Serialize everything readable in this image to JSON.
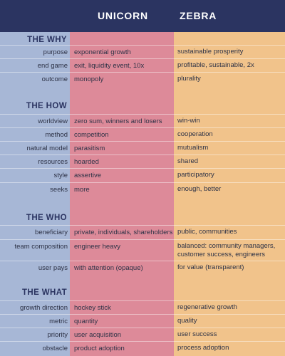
{
  "header": {
    "unicorn": "UNICORN",
    "zebra": "ZEBRA"
  },
  "sections": [
    {
      "title": "THE WHY",
      "rows": [
        {
          "label": "purpose",
          "unicorn": "exponential growth",
          "zebra": "sustainable prosperity"
        },
        {
          "label": "end game",
          "unicorn": "exit, liquidity event, 10x",
          "zebra": "profitable, sustainable, 2x"
        },
        {
          "label": "outcome",
          "unicorn": "monopoly",
          "zebra": "plurality"
        }
      ]
    },
    {
      "title": "THE HOW",
      "rows": [
        {
          "label": "worldview",
          "unicorn": "zero sum, winners and losers",
          "zebra": "win-win"
        },
        {
          "label": "method",
          "unicorn": "competition",
          "zebra": "cooperation"
        },
        {
          "label": "natural model",
          "unicorn": "parasitism",
          "zebra": "mutualism"
        },
        {
          "label": "resources",
          "unicorn": "hoarded",
          "zebra": "shared"
        },
        {
          "label": "style",
          "unicorn": "assertive",
          "zebra": "participatory"
        },
        {
          "label": "seeks",
          "unicorn": "more",
          "zebra": "enough, better"
        }
      ]
    },
    {
      "title": "THE WHO",
      "rows": [
        {
          "label": "beneficiary",
          "unicorn": "private, individuals, shareholders",
          "zebra": "public, communities"
        },
        {
          "label": "team composition",
          "unicorn": "engineer heavy",
          "zebra": "balanced: community managers, customer success, engineers"
        },
        {
          "label": "user pays",
          "unicorn": "with attention (opaque)",
          "zebra": "for value (transparent)"
        }
      ]
    },
    {
      "title": "THE WHAT",
      "rows": [
        {
          "label": "growth direction",
          "unicorn": "hockey stick",
          "zebra": "regenerative growth"
        },
        {
          "label": "metric",
          "unicorn": "quantity",
          "zebra": "quality"
        },
        {
          "label": "priority",
          "unicorn": "user acquisition",
          "zebra": "user success"
        },
        {
          "label": "obstacle",
          "unicorn": "product adoption",
          "zebra": "process adoption"
        }
      ]
    }
  ]
}
